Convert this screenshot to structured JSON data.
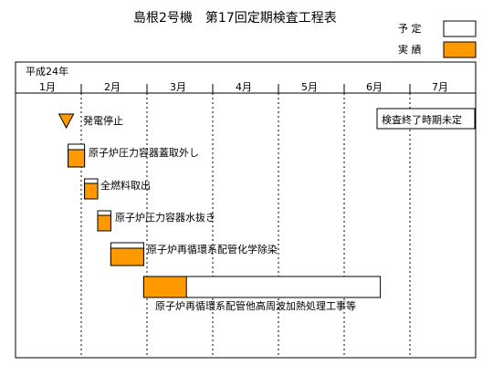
{
  "chart_data": {
    "type": "gantt",
    "title": "島根2号機　第17回定期検査工程表",
    "legend": [
      {
        "label": "予 定",
        "color": "#ffffff"
      },
      {
        "label": "実 績",
        "color": "#ff9900"
      }
    ],
    "year_label": "平成24年",
    "months": [
      "1月",
      "2月",
      "3月",
      "4月",
      "5月",
      "6月",
      "7月"
    ],
    "note": "検査終了時期未定",
    "milestone": {
      "label": "発電停止",
      "at": 0.8
    },
    "tasks": [
      {
        "label": "原子炉圧力容器蓋取外し",
        "plan_start": 0.8,
        "plan_end": 1.05,
        "actual_start": 0.8,
        "actual_end": 1.05,
        "actual_fill": 0.75
      },
      {
        "label": "全燃料取出",
        "plan_start": 1.05,
        "plan_end": 1.25,
        "actual_start": 1.05,
        "actual_end": 1.25,
        "actual_fill": 0.75
      },
      {
        "label": "原子炉圧力容器水抜き",
        "plan_start": 1.25,
        "plan_end": 1.45,
        "actual_start": 1.25,
        "actual_end": 1.45,
        "actual_fill": 0.75
      },
      {
        "label": "原子炉再循環系配管化学除染",
        "plan_start": 1.45,
        "plan_end": 1.95,
        "actual_start": 1.45,
        "actual_end": 1.95,
        "actual_fill": 0.75
      },
      {
        "label": "原子炉再循環系配管他高周波加熱処理工事等",
        "plan_start": 1.95,
        "plan_end": 5.55,
        "actual_start": 1.95,
        "actual_end": 2.6,
        "actual_fill": 1.0
      }
    ]
  }
}
